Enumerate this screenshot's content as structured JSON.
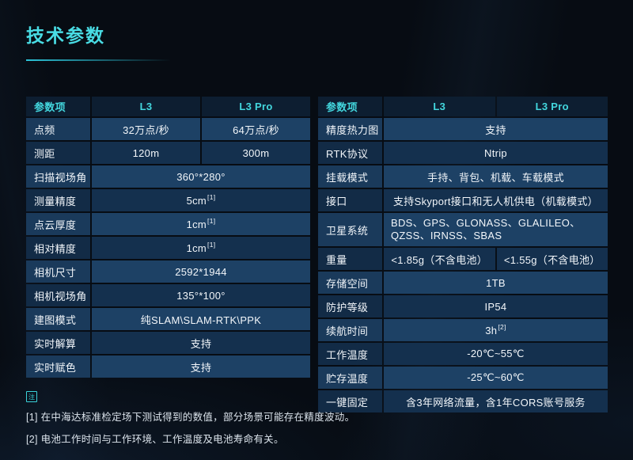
{
  "page": {
    "title": "技术参数",
    "accent_color": "#43d7de",
    "row_light_color": "#1d4165",
    "row_dark_color": "#14304e",
    "header_bg_color": "#0d1e31",
    "background_color": "#070c13"
  },
  "left_table": {
    "headers": {
      "param": "参数项",
      "l3": "L3",
      "l3pro": "L3 Pro"
    },
    "rows": [
      {
        "label": "点频",
        "l3": "32万点/秒",
        "l3pro": "64万点/秒"
      },
      {
        "label": "测距",
        "l3": "120m",
        "l3pro": "300m"
      },
      {
        "label": "扫描视场角",
        "value": "360°*280°"
      },
      {
        "label": "测量精度",
        "value": "5cm",
        "sup": "[1]"
      },
      {
        "label": "点云厚度",
        "value": "1cm",
        "sup": "[1]"
      },
      {
        "label": "相对精度",
        "value": "1cm",
        "sup": "[1]"
      },
      {
        "label": "相机尺寸",
        "value": "2592*1944"
      },
      {
        "label": "相机视场角",
        "value": "135°*100°"
      },
      {
        "label": "建图模式",
        "value": "纯SLAM\\SLAM-RTK\\PPK"
      },
      {
        "label": "实时解算",
        "value": "支持"
      },
      {
        "label": "实时赋色",
        "value": "支持"
      }
    ]
  },
  "right_table": {
    "headers": {
      "param": "参数项",
      "l3": "L3",
      "l3pro": "L3 Pro"
    },
    "rows": [
      {
        "label": "精度热力图",
        "value": "支持"
      },
      {
        "label": "RTK协议",
        "value": "Ntrip"
      },
      {
        "label": "挂载模式",
        "value": "手持、背包、机载、车载模式"
      },
      {
        "label": "接口",
        "value": "支持Skyport接口和无人机供电（机载模式）"
      },
      {
        "label": "卫星系统",
        "value": "BDS、GPS、GLONASS、GLALILEO、QZSS、IRNSS、SBAS"
      },
      {
        "label": "重量",
        "l3": "<1.85g（不含电池）",
        "l3pro": "<1.55g（不含电池）"
      },
      {
        "label": "存储空间",
        "value": "1TB"
      },
      {
        "label": "防护等级",
        "value": "IP54"
      },
      {
        "label": "续航时间",
        "value": "3h",
        "sup": "[2]"
      },
      {
        "label": "工作温度",
        "value": "-20℃~55℃"
      },
      {
        "label": "贮存温度",
        "value": "-25℃~60℃"
      },
      {
        "label": "一键固定",
        "value": "含3年网络流量，含1年CORS账号服务"
      }
    ]
  },
  "footnotes": {
    "badge": "注",
    "items": [
      "[1] 在中海达标准检定场下测试得到的数值，部分场景可能存在精度波动。",
      "[2] 电池工作时间与工作环境、工作温度及电池寿命有关。"
    ]
  }
}
